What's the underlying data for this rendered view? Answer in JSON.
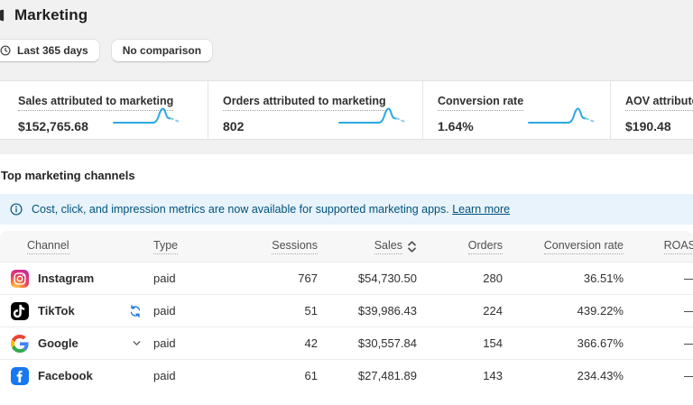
{
  "page": {
    "title": "Marketing"
  },
  "toolbar": {
    "date_range_label": "Last 365 days",
    "comparison_label": "No comparison"
  },
  "metrics": [
    {
      "label": "Sales attributed to marketing",
      "value": "$152,765.68",
      "sparkline": true
    },
    {
      "label": "Orders attributed to marketing",
      "value": "802",
      "sparkline": true
    },
    {
      "label": "Conversion rate",
      "value": "1.64%",
      "sparkline": true
    },
    {
      "label": "AOV attributed to marketing",
      "value": "$190.48",
      "sparkline": false
    }
  ],
  "channels_section": {
    "title": "Top marketing channels",
    "banner_text": "Cost, click, and impression metrics are now available for supported marketing apps.",
    "banner_link": "Learn more"
  },
  "table": {
    "columns": [
      "Channel",
      "Type",
      "Sessions",
      "Sales",
      "Orders",
      "Conversion rate",
      "ROAS"
    ],
    "sorted_column": "Sales",
    "rows": [
      {
        "name": "Instagram",
        "icon": "instagram-icon",
        "badge": null,
        "type": "paid",
        "sessions": "767",
        "sales": "$54,730.50",
        "orders": "280",
        "conversion_rate": "36.51%",
        "roas": "—"
      },
      {
        "name": "TikTok",
        "icon": "tiktok-icon",
        "badge": "sync",
        "type": "paid",
        "sessions": "51",
        "sales": "$39,986.43",
        "orders": "224",
        "conversion_rate": "439.22%",
        "roas": "—"
      },
      {
        "name": "Google",
        "icon": "google-icon",
        "badge": "chevron",
        "type": "paid",
        "sessions": "42",
        "sales": "$30,557.84",
        "orders": "154",
        "conversion_rate": "366.67%",
        "roas": "—"
      },
      {
        "name": "Facebook",
        "icon": "facebook-icon",
        "badge": null,
        "type": "paid",
        "sessions": "61",
        "sales": "$27,481.89",
        "orders": "143",
        "conversion_rate": "234.43%",
        "roas": "—"
      }
    ]
  },
  "colors": {
    "accent-blue": "#2da9e1",
    "spark-dash": "#8fcdef",
    "banner-bg": "#e8f3fb",
    "banner-text": "#00527c",
    "sync-blue": "#1672e6"
  }
}
